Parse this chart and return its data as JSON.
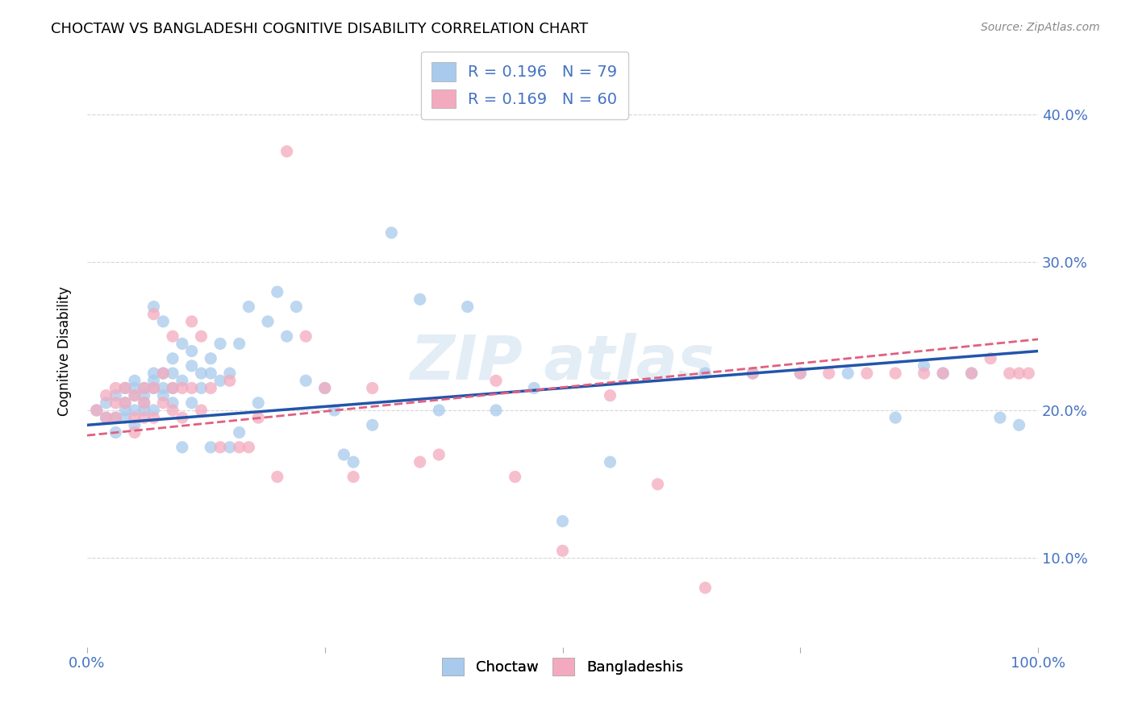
{
  "title": "CHOCTAW VS BANGLADESHI COGNITIVE DISABILITY CORRELATION CHART",
  "source": "Source: ZipAtlas.com",
  "ylabel": "Cognitive Disability",
  "xlim": [
    0,
    1.0
  ],
  "ylim": [
    0.04,
    0.44
  ],
  "yticks": [
    0.1,
    0.2,
    0.3,
    0.4
  ],
  "ytick_labels": [
    "10.0%",
    "20.0%",
    "30.0%",
    "40.0%"
  ],
  "blue_color": "#A8CAEC",
  "pink_color": "#F4AABE",
  "blue_line_color": "#2255AA",
  "pink_line_color": "#E06080",
  "R_blue": 0.196,
  "N_blue": 79,
  "R_pink": 0.169,
  "N_pink": 60,
  "blue_scatter_x": [
    0.01,
    0.02,
    0.02,
    0.03,
    0.03,
    0.03,
    0.04,
    0.04,
    0.04,
    0.04,
    0.05,
    0.05,
    0.05,
    0.05,
    0.05,
    0.06,
    0.06,
    0.06,
    0.06,
    0.07,
    0.07,
    0.07,
    0.07,
    0.07,
    0.08,
    0.08,
    0.08,
    0.08,
    0.09,
    0.09,
    0.09,
    0.09,
    0.1,
    0.1,
    0.1,
    0.11,
    0.11,
    0.11,
    0.12,
    0.12,
    0.13,
    0.13,
    0.13,
    0.14,
    0.14,
    0.15,
    0.15,
    0.16,
    0.16,
    0.17,
    0.18,
    0.19,
    0.2,
    0.21,
    0.22,
    0.23,
    0.25,
    0.26,
    0.27,
    0.28,
    0.3,
    0.32,
    0.35,
    0.37,
    0.4,
    0.43,
    0.47,
    0.5,
    0.55,
    0.65,
    0.7,
    0.75,
    0.8,
    0.85,
    0.88,
    0.9,
    0.93,
    0.96,
    0.98
  ],
  "blue_scatter_y": [
    0.2,
    0.195,
    0.205,
    0.21,
    0.195,
    0.185,
    0.2,
    0.215,
    0.195,
    0.205,
    0.21,
    0.2,
    0.19,
    0.22,
    0.215,
    0.21,
    0.2,
    0.215,
    0.205,
    0.225,
    0.27,
    0.22,
    0.215,
    0.2,
    0.215,
    0.21,
    0.225,
    0.26,
    0.225,
    0.235,
    0.215,
    0.205,
    0.245,
    0.22,
    0.175,
    0.23,
    0.24,
    0.205,
    0.215,
    0.225,
    0.225,
    0.235,
    0.175,
    0.245,
    0.22,
    0.225,
    0.175,
    0.185,
    0.245,
    0.27,
    0.205,
    0.26,
    0.28,
    0.25,
    0.27,
    0.22,
    0.215,
    0.2,
    0.17,
    0.165,
    0.19,
    0.32,
    0.275,
    0.2,
    0.27,
    0.2,
    0.215,
    0.125,
    0.165,
    0.225,
    0.225,
    0.225,
    0.225,
    0.195,
    0.23,
    0.225,
    0.225,
    0.195,
    0.19
  ],
  "pink_scatter_x": [
    0.01,
    0.02,
    0.02,
    0.03,
    0.03,
    0.03,
    0.04,
    0.04,
    0.05,
    0.05,
    0.05,
    0.06,
    0.06,
    0.06,
    0.07,
    0.07,
    0.07,
    0.08,
    0.08,
    0.09,
    0.09,
    0.09,
    0.1,
    0.1,
    0.11,
    0.11,
    0.12,
    0.12,
    0.13,
    0.14,
    0.15,
    0.16,
    0.17,
    0.18,
    0.2,
    0.21,
    0.23,
    0.25,
    0.28,
    0.3,
    0.35,
    0.37,
    0.43,
    0.45,
    0.5,
    0.55,
    0.6,
    0.65,
    0.7,
    0.75,
    0.78,
    0.82,
    0.85,
    0.88,
    0.9,
    0.93,
    0.95,
    0.97,
    0.98,
    0.99
  ],
  "pink_scatter_y": [
    0.2,
    0.21,
    0.195,
    0.215,
    0.205,
    0.195,
    0.215,
    0.205,
    0.21,
    0.195,
    0.185,
    0.215,
    0.205,
    0.195,
    0.265,
    0.215,
    0.195,
    0.225,
    0.205,
    0.215,
    0.2,
    0.25,
    0.215,
    0.195,
    0.26,
    0.215,
    0.25,
    0.2,
    0.215,
    0.175,
    0.22,
    0.175,
    0.175,
    0.195,
    0.155,
    0.375,
    0.25,
    0.215,
    0.155,
    0.215,
    0.165,
    0.17,
    0.22,
    0.155,
    0.105,
    0.21,
    0.15,
    0.08,
    0.225,
    0.225,
    0.225,
    0.225,
    0.225,
    0.225,
    0.225,
    0.225,
    0.235,
    0.225,
    0.225,
    0.225
  ]
}
